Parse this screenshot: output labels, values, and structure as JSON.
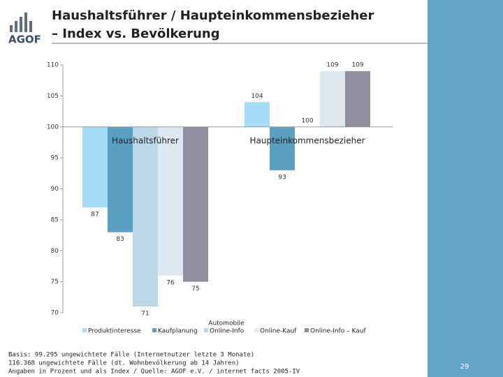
{
  "logo": "AGOF",
  "page_number": "29",
  "footnotes": [
    "Basis: 99.295 ungewichtete Fälle (Internetnutzer letzte 3 Monate)",
    "116.368 ungewichtete Fälle (dt. Wohnbevölkerung ab 14 Jahren)",
    "Angaben in Prozent und als Index / Quelle: AGOF e.V. / internet facts 2005-IV"
  ],
  "chart_data": {
    "type": "bar",
    "title": [
      "Haushaltsführer / Haupteinkommensbezieher",
      "– Index vs. Bevölkerung"
    ],
    "categories": [
      "Haushaltsführer",
      "Haupteinkommensbezieher"
    ],
    "legend_title": "Automobile",
    "baseline": 100,
    "series": [
      {
        "name": "Produktinteresse",
        "color": "#a6dcf5",
        "values": [
          87,
          104
        ]
      },
      {
        "name": "Kaufplanung",
        "color": "#5b9fc1",
        "values": [
          83,
          93
        ]
      },
      {
        "name": "Online-Info",
        "color": "#bcd8e6",
        "values": [
          71,
          100
        ]
      },
      {
        "name": "Online-Kauf",
        "color": "#dde9f1",
        "values": [
          76,
          109
        ]
      },
      {
        "name": "Online-Info – Kauf",
        "color": "#908fa0",
        "values": [
          75,
          109
        ]
      }
    ],
    "ylim": [
      70,
      110
    ],
    "yticks": [
      70,
      75,
      80,
      85,
      90,
      95,
      100,
      105,
      110
    ],
    "legend": "bottom"
  }
}
